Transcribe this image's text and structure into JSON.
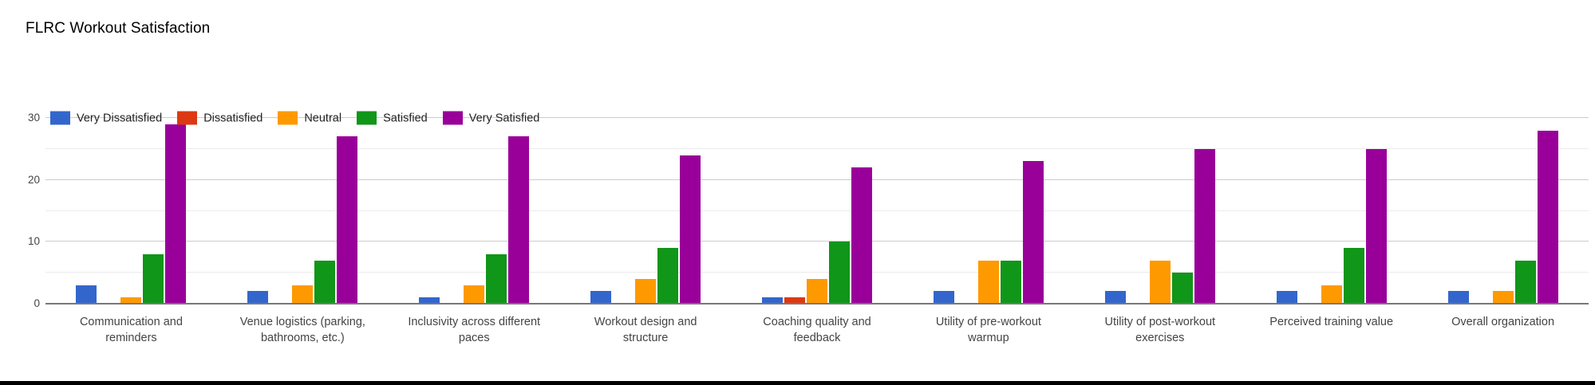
{
  "title": "FLRC Workout Satisfaction",
  "chart_data": {
    "type": "bar",
    "title": "FLRC Workout Satisfaction",
    "xlabel": "",
    "ylabel": "",
    "ylim": [
      0,
      30
    ],
    "yticks": [
      0,
      10,
      20,
      30
    ],
    "minor_gridlines": [
      5,
      15,
      25
    ],
    "grid": true,
    "legend_position": "top-left",
    "categories": [
      "Communication and reminders",
      "Venue logistics (parking, bathrooms, etc.)",
      "Inclusivity across different paces",
      "Workout design and structure",
      "Coaching quality and feedback",
      "Utility of pre-workout warmup",
      "Utility of post-workout exercises",
      "Perceived training value",
      "Overall organization"
    ],
    "series": [
      {
        "name": "Very Dissatisfied",
        "color": "#3366CC",
        "values": [
          3,
          2,
          1,
          2,
          1,
          2,
          2,
          2,
          2
        ]
      },
      {
        "name": "Dissatisfied",
        "color": "#DC3912",
        "values": [
          0,
          0,
          0,
          0,
          1,
          0,
          0,
          0,
          0
        ]
      },
      {
        "name": "Neutral",
        "color": "#FF9900",
        "values": [
          1,
          3,
          3,
          4,
          4,
          7,
          7,
          3,
          2
        ]
      },
      {
        "name": "Satisfied",
        "color": "#109618",
        "values": [
          8,
          7,
          8,
          9,
          10,
          7,
          5,
          9,
          7
        ]
      },
      {
        "name": "Very Satisfied",
        "color": "#990099",
        "values": [
          29,
          27,
          27,
          24,
          22,
          23,
          25,
          25,
          28
        ]
      }
    ]
  },
  "colors": {
    "background": "#ffffff",
    "axis_line": "#787878",
    "major_gridline": "#cccccc",
    "minor_gridline": "#ebebeb",
    "title_text": "#000000",
    "tick_text": "#444444",
    "category_text": "#444444",
    "legend_text": "#222222",
    "bottom_bar": "#000000"
  }
}
